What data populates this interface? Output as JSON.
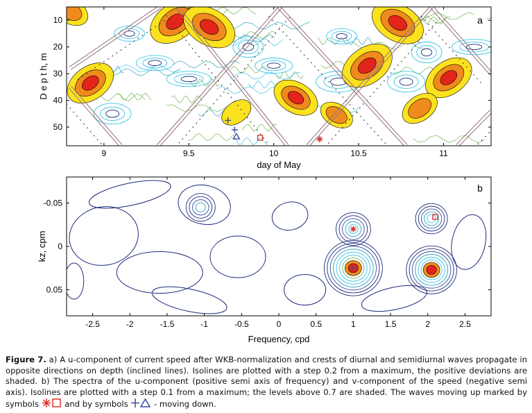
{
  "chart_data": [
    {
      "type": "heatmap",
      "panel_label": "a",
      "xlabel": "day of May",
      "ylabel": "D e p t h,  m",
      "xlim": [
        8.78,
        11.28
      ],
      "ylim": [
        57,
        5
      ],
      "xticks": [
        "9",
        "9.5",
        "10",
        "10.5",
        "11"
      ],
      "xtick_values": [
        9,
        9.5,
        10,
        10.5,
        11
      ],
      "yticks": [
        "10",
        "20",
        "30",
        "40",
        "50"
      ],
      "ytick_values": [
        10,
        20,
        30,
        40,
        50
      ],
      "shaded_maxima": [
        {
          "day": 9.42,
          "depth": 10.5,
          "peak": 1.0
        },
        {
          "day": 9.62,
          "depth": 12.5,
          "peak": 1.0
        },
        {
          "day": 8.92,
          "depth": 33.5,
          "peak": 0.9
        },
        {
          "day": 10.13,
          "depth": 39.0,
          "peak": 0.8
        },
        {
          "day": 10.55,
          "depth": 27.0,
          "peak": 1.0
        },
        {
          "day": 10.73,
          "depth": 11.0,
          "peak": 1.0
        },
        {
          "day": 11.03,
          "depth": 31.5,
          "peak": 0.9
        },
        {
          "day": 8.8,
          "depth": 6.5,
          "peak": 0.6
        },
        {
          "day": 10.86,
          "depth": 43.0,
          "peak": 0.6
        },
        {
          "day": 10.37,
          "depth": 45.5,
          "peak": 0.5
        },
        {
          "day": 9.78,
          "depth": 44.5,
          "peak": 0.45
        }
      ],
      "crest_lines": [
        {
          "direction": "down",
          "start": [
            8.8,
            28
          ],
          "end": [
            9.33,
            5
          ]
        },
        {
          "direction": "down",
          "start": [
            9.32,
            57
          ],
          "end": [
            10.04,
            5
          ]
        },
        {
          "direction": "down",
          "start": [
            10.2,
            57
          ],
          "end": [
            10.93,
            5
          ]
        },
        {
          "direction": "down",
          "start": [
            11.08,
            57
          ],
          "end": [
            11.28,
            44
          ]
        },
        {
          "direction": "up",
          "start": [
            9.43,
            5
          ],
          "end": [
            10.08,
            57
          ]
        },
        {
          "direction": "up",
          "start": [
            10.03,
            5
          ],
          "end": [
            10.78,
            57
          ]
        },
        {
          "direction": "up",
          "start": [
            10.93,
            5
          ],
          "end": [
            11.28,
            30
          ]
        },
        {
          "direction": "up",
          "start": [
            8.8,
            35
          ],
          "end": [
            9.1,
            57
          ]
        }
      ],
      "markers": [
        {
          "symbol": "plus",
          "day": 9.73,
          "depth": 47.5,
          "color": "#3b4aa0"
        },
        {
          "symbol": "plus",
          "day": 9.77,
          "depth": 51.0,
          "color": "#3b4aa0"
        },
        {
          "symbol": "triangle",
          "day": 9.78,
          "depth": 53.5,
          "color": "#3b4aa0"
        },
        {
          "symbol": "square",
          "day": 9.92,
          "depth": 54.0,
          "color": "#d9342b"
        },
        {
          "symbol": "star",
          "day": 10.27,
          "depth": 54.5,
          "color": "#d9342b"
        }
      ]
    },
    {
      "type": "heatmap",
      "panel_label": "b",
      "xlabel": "Frequency, cpd",
      "ylabel": "kz, cpm",
      "xlim": [
        -2.85,
        2.85
      ],
      "ylim": [
        0.08,
        -0.08
      ],
      "xticks": [
        "-2.5",
        "-2",
        "-1.5",
        "-1",
        "-0.5",
        "0",
        "0.5",
        "1",
        "1.5",
        "2",
        "2.5"
      ],
      "xtick_values": [
        -2.5,
        -2,
        -1.5,
        -1,
        -0.5,
        0,
        0.5,
        1,
        1.5,
        2,
        2.5
      ],
      "yticks": [
        "-0.05",
        "0",
        "0.05"
      ],
      "ytick_values": [
        -0.05,
        0,
        0.05
      ],
      "spectral_peaks": [
        {
          "frequency": 1.0,
          "kz": 0.025,
          "peak": 1.0
        },
        {
          "frequency": 2.05,
          "kz": 0.027,
          "peak": 0.85
        },
        {
          "frequency": 1.0,
          "kz": -0.02,
          "peak": 0.55
        },
        {
          "frequency": 2.05,
          "kz": -0.032,
          "peak": 0.5
        },
        {
          "frequency": -1.05,
          "kz": -0.045,
          "peak": 0.4
        }
      ],
      "markers": [
        {
          "symbol": "star",
          "frequency": 1.0,
          "kz": -0.02,
          "color": "#d9342b"
        },
        {
          "symbol": "square",
          "frequency": 2.1,
          "kz": -0.034,
          "color": "#d9342b"
        },
        {
          "symbol": "plus",
          "frequency": 1.0,
          "kz": 0.025,
          "color": "#3b4aa0"
        }
      ]
    }
  ],
  "caption": {
    "bold": "Figure 7.",
    "text1": " a) A u-component of current speed after WKB-normalization and crests of diurnal and semidiurnal waves propagate in opposite directions on depth (inclined lines). Isolines are plotted with a step 0.2 from a maximum, the positive deviations are shaded.  b) The spectra of the u-component (positive semi axis of frequency) and v-component of the speed (negative semi axis). Isolines are plotted with a step 0.1 from a maximum; the levels above 0.7 are shaded. The waves moving up marked by symbols ",
    "text2": " and by symbols ",
    "text3": " - moving down."
  },
  "colors": {
    "red": "#e3241b",
    "orange": "#f08a1c",
    "yellow": "#fbe21e",
    "cyan": "#36c3e6",
    "teal": "#2b9fb8",
    "green": "#6cb34a",
    "navy": "#1c2a7a",
    "blue": "#3b4aa0",
    "crest": "#9a7a82"
  }
}
